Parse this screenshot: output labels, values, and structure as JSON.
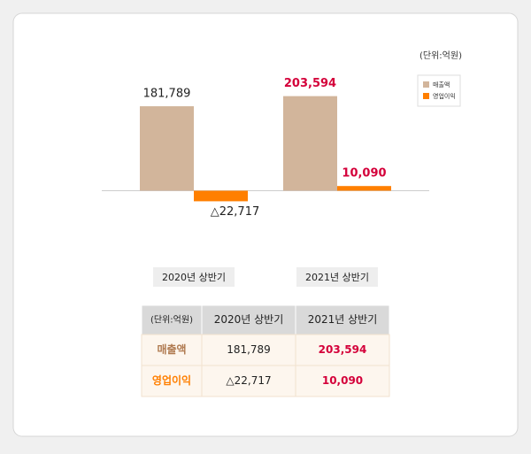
{
  "chart_data": {
    "type": "bar",
    "unit": "(단위:억원)",
    "categories": [
      "2020년 상반기",
      "2021년 상반기"
    ],
    "series": [
      {
        "name": "매출액",
        "color": "#d2b59b",
        "values": [
          181789,
          203594
        ],
        "value_labels": [
          "181,789",
          "203,594"
        ]
      },
      {
        "name": "영업이익",
        "color": "#ff7f00",
        "values": [
          -22717,
          10090
        ],
        "value_labels": [
          "△22,717",
          "10,090"
        ]
      }
    ],
    "ylim": [
      -100000,
      220000
    ],
    "highlight_color": "#d4003a"
  },
  "table": {
    "header": [
      "(단위:억원)",
      "2020년 상반기",
      "2021년 상반기"
    ],
    "rows": [
      [
        "매출액",
        "181,789",
        "203,594"
      ],
      [
        "영업이익",
        "△22,717",
        "10,090"
      ]
    ]
  }
}
